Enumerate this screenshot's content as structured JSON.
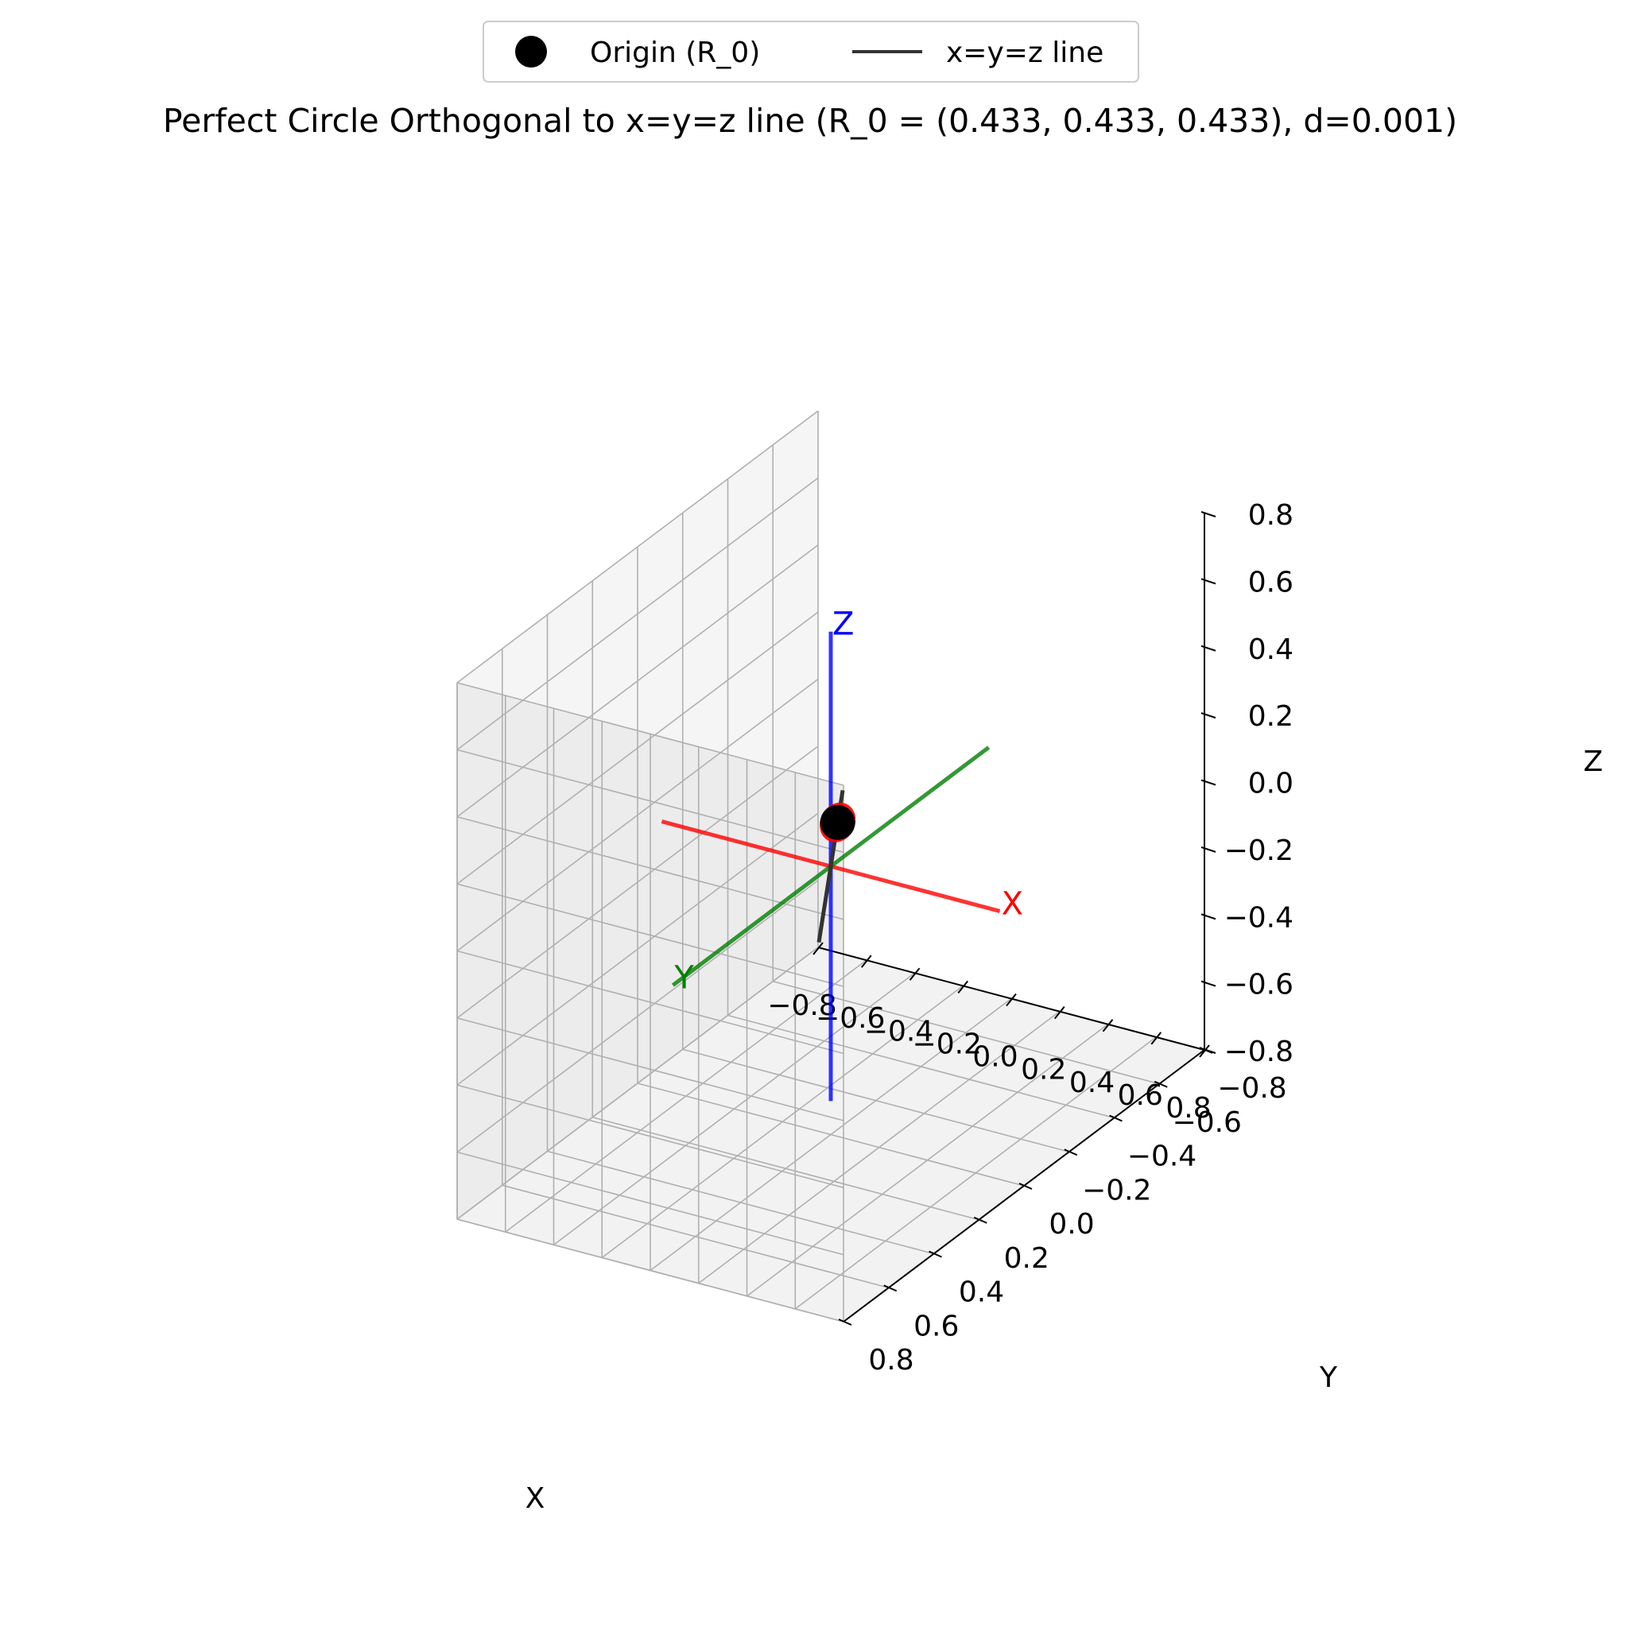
{
  "chart_data": {
    "type": "line3d",
    "title": "Perfect Circle Orthogonal to x=y=z line (R_0 = (0.433, 0.433, 0.433), d=0.001)",
    "xlabel": "X",
    "ylabel": "Y",
    "zlabel": "Z",
    "xlim": [
      -0.8,
      0.8
    ],
    "ylim": [
      -0.8,
      0.8
    ],
    "zlim": [
      -0.8,
      0.8
    ],
    "ticks": [
      -0.8,
      -0.6,
      -0.4,
      -0.2,
      0.0,
      0.2,
      0.4,
      0.6,
      0.8
    ],
    "tick_labels": [
      "−0.8",
      "−0.6",
      "−0.4",
      "−0.2",
      "0.0",
      "0.2",
      "0.4",
      "0.6",
      "0.8"
    ],
    "grid": true,
    "legend": {
      "placement": "top-center",
      "entries": [
        {
          "label": "Origin (R_0)",
          "marker": "circle",
          "color": "#000000"
        },
        {
          "label": "x=y=z line",
          "marker": "line",
          "color": "#333333"
        }
      ]
    },
    "series": [
      {
        "name": "X axis",
        "color": "#ff0000",
        "points": [
          [
            -0.7,
            0,
            0
          ],
          [
            0.7,
            0,
            0
          ]
        ],
        "label": "X"
      },
      {
        "name": "Y axis",
        "color": "#008000",
        "points": [
          [
            0,
            -0.7,
            0
          ],
          [
            0,
            0.7,
            0
          ]
        ],
        "label": "Y"
      },
      {
        "name": "Z axis",
        "color": "#0000ff",
        "points": [
          [
            0,
            0,
            -0.7
          ],
          [
            0,
            0,
            0.7
          ]
        ],
        "label": "Z"
      },
      {
        "name": "x=y=z line",
        "color": "#333333",
        "points": [
          [
            -0.75,
            -0.75,
            -0.75
          ],
          [
            0.75,
            0.75,
            0.75
          ]
        ]
      }
    ],
    "origin_point": {
      "name": "Origin (R_0)",
      "x": 0.433,
      "y": 0.433,
      "z": 0.433,
      "color": "#000000"
    },
    "circle": {
      "center": [
        0.433,
        0.433,
        0.433
      ],
      "radius": 0.04,
      "color": "#ff0000"
    }
  }
}
